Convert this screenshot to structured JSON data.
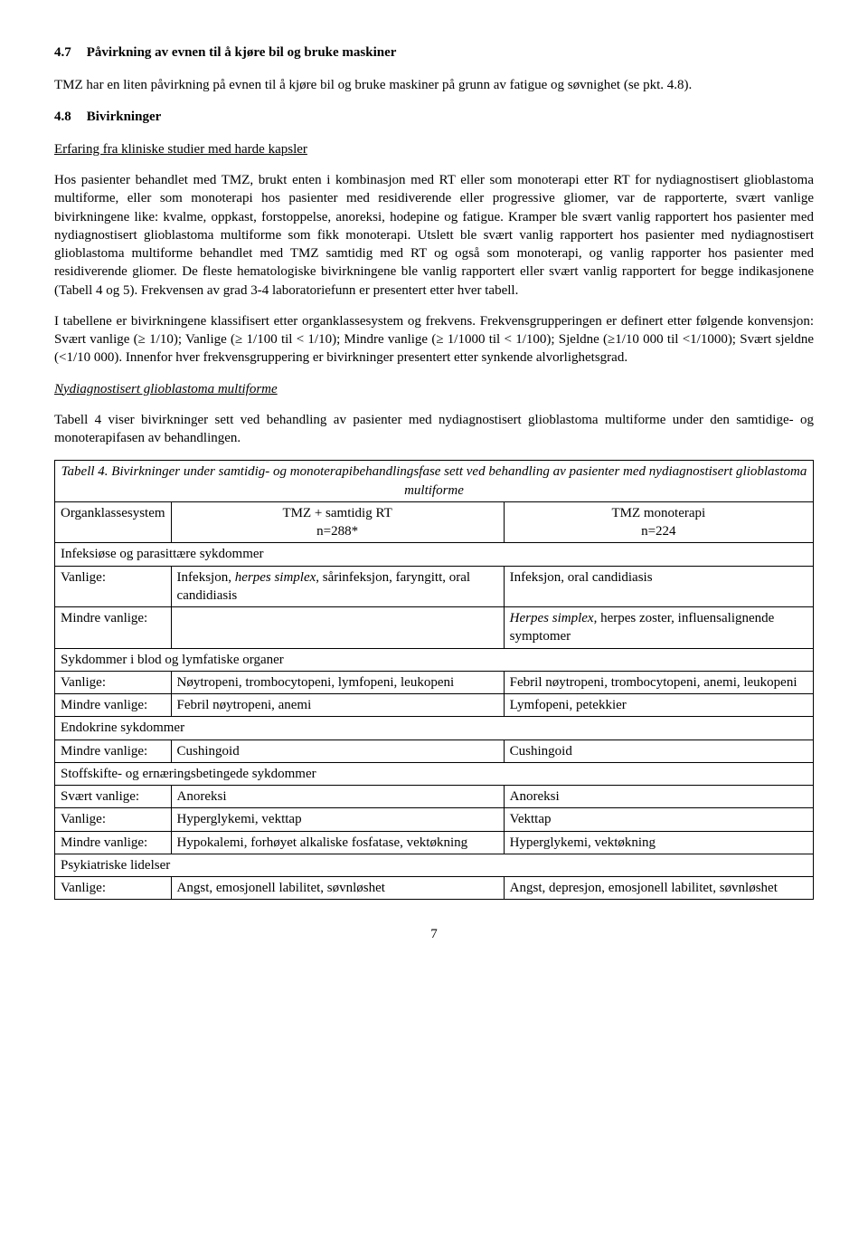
{
  "section47": {
    "number": "4.7",
    "title": "Påvirkning av evnen til å kjøre bil og bruke maskiner",
    "body": "TMZ har en liten påvirkning på evnen til å kjøre bil og bruke maskiner på grunn av fatigue og søvnighet (se pkt. 4.8)."
  },
  "section48": {
    "number": "4.8",
    "title": "Bivirkninger",
    "subhead": "Erfaring fra kliniske studier med harde kapsler",
    "para1a": "Hos pasienter behandlet med TMZ, brukt enten i kombinasjon med RT eller som monoterapi etter RT for nydiagnostisert glioblastoma multiforme, eller som monoterapi hos pasienter med residiverende eller progressive gliomer, var de rapporterte, svært vanlige bivirkningene like: kvalme, oppkast, forstoppelse, anoreksi, hodepine og fatigue. Kramper ble svært vanlig rapportert hos pasienter med nydiagnostisert glioblastoma multiforme som fikk monoterapi. Utslett ble svært vanlig rapportert hos pasienter med nydiagnostisert glioblastoma multiforme behandlet med TMZ samtidig med RT og også som monoterapi, og vanlig rapporter hos pasienter med residiverende gliomer. De fleste hematologiske bivirkningene ble vanlig rapportert eller svært vanlig rapportert for begge indikasjonene (Tabell 4 og 5). Frekvensen av grad 3-4 laboratoriefunn er presentert etter hver tabell.",
    "para2": "I tabellene er bivirkningene klassifisert etter organklassesystem og frekvens. Frekvensgrupperingen er definert etter følgende konvensjon: Svært vanlige (≥ 1/10); Vanlige (≥ 1/100 til < 1/10); Mindre vanlige (≥ 1/1000 til < 1/100); Sjeldne (≥1/10 000 til <1/1000); Svært sjeldne (<1/10 000). Innenfor hver frekvensgruppering er bivirkninger presentert etter synkende alvorlighetsgrad.",
    "subhead2": "Nydiagnostisert glioblastoma multiforme",
    "para3": "Tabell 4 viser bivirkninger sett ved behandling av pasienter med nydiagnostisert glioblastoma multiforme under den samtidige- og monoterapifasen av behandlingen."
  },
  "table4": {
    "title": "Tabell 4. Bivirkninger under samtidig- og monoterapibehandlingsfase sett ved behandling av pasienter med nydiagnostisert glioblastoma multiforme",
    "header": {
      "col1": "Organklassesystem",
      "col2a": "TMZ + samtidig RT",
      "col2b": "n=288*",
      "col3a": "TMZ monoterapi",
      "col3b": "n=224"
    },
    "groups": [
      {
        "name": "Infeksiøse og parasittære sykdommer",
        "rows": [
          {
            "freq": "Vanlige:",
            "c2": "Infeksjon, <i>herpes simplex</i>, sårinfeksjon, faryngitt, oral candidiasis",
            "c3": "Infeksjon, oral candidiasis"
          },
          {
            "freq": "Mindre vanlige:",
            "c2": "",
            "c3": "<i>Herpes simplex</i>, herpes zoster, influensalignende symptomer"
          }
        ]
      },
      {
        "name": "Sykdommer i blod og lymfatiske organer",
        "rows": [
          {
            "freq": "Vanlige:",
            "c2": "Nøytropeni, trombocytopeni, lymfopeni, leukopeni",
            "c3": "Febril nøytropeni, trombocytopeni, anemi, leukopeni"
          },
          {
            "freq": "Mindre vanlige:",
            "c2": "Febril nøytropeni, anemi",
            "c3": "Lymfopeni, petekkier"
          }
        ]
      },
      {
        "name": "Endokrine sykdommer",
        "rows": [
          {
            "freq": "Mindre vanlige:",
            "c2": "Cushingoid",
            "c3": "Cushingoid"
          }
        ]
      },
      {
        "name": "Stoffskifte- og ernæringsbetingede sykdommer",
        "rows": [
          {
            "freq": "Svært vanlige:",
            "c2": "Anoreksi",
            "c3": "Anoreksi"
          },
          {
            "freq": "Vanlige:",
            "c2": "Hyperglykemi, vekttap",
            "c3": "Vekttap"
          },
          {
            "freq": "Mindre vanlige:",
            "c2": "Hypokalemi, forhøyet alkaliske fosfatase, vektøkning",
            "c3": "Hyperglykemi, vektøkning"
          }
        ]
      },
      {
        "name": "Psykiatriske lidelser",
        "rows": [
          {
            "freq": "Vanlige:",
            "c2": "Angst, emosjonell labilitet, søvnløshet",
            "c3": "Angst, depresjon, emosjonell labilitet, søvnløshet"
          }
        ]
      }
    ]
  },
  "pageNumber": "7"
}
